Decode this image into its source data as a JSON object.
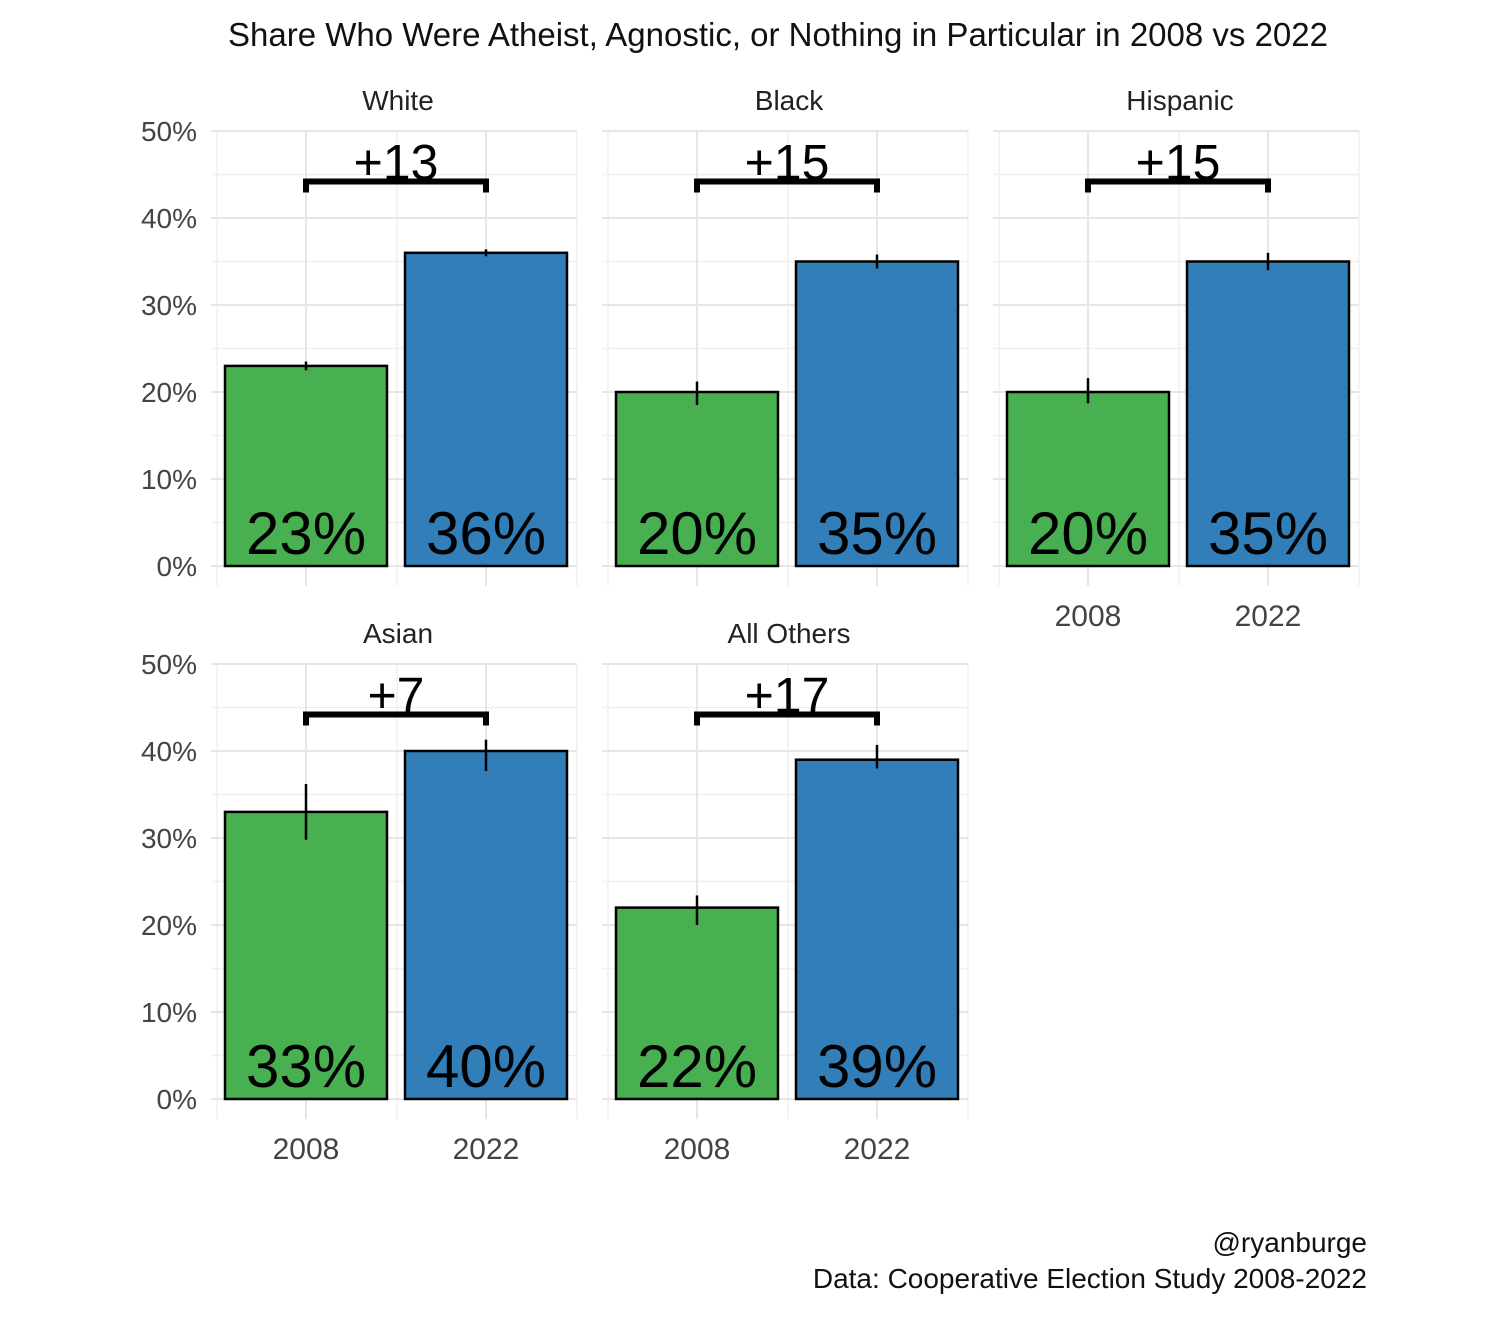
{
  "chart_data": {
    "type": "bar",
    "title": "Share Who Were Atheist, Agnostic, or Nothing in Particular in 2008 vs 2022",
    "categories": [
      "2008",
      "2022"
    ],
    "ylim": [
      0,
      50
    ],
    "yticks": [
      "0%",
      "10%",
      "20%",
      "30%",
      "40%",
      "50%"
    ],
    "colors": {
      "2008": "#48b050",
      "2022": "#317eb8"
    },
    "panels": [
      {
        "name": "White",
        "values": [
          23,
          36
        ],
        "labels": [
          "23%",
          "36%"
        ],
        "errors": [
          [
            22.5,
            23.5
          ],
          [
            35.6,
            36.4
          ]
        ],
        "diff": "+13"
      },
      {
        "name": "Black",
        "values": [
          20,
          35
        ],
        "labels": [
          "20%",
          "35%"
        ],
        "errors": [
          [
            18.5,
            21.2
          ],
          [
            34.2,
            35.8
          ]
        ],
        "diff": "+15"
      },
      {
        "name": "Hispanic",
        "values": [
          20,
          35
        ],
        "labels": [
          "20%",
          "35%"
        ],
        "errors": [
          [
            18.7,
            21.6
          ],
          [
            34.0,
            36.0
          ]
        ],
        "diff": "+15"
      },
      {
        "name": "Asian",
        "values": [
          33,
          40
        ],
        "labels": [
          "33%",
          "40%"
        ],
        "errors": [
          [
            29.8,
            36.2
          ],
          [
            37.7,
            41.3
          ]
        ],
        "diff": "+7"
      },
      {
        "name": "All Others",
        "values": [
          22,
          39
        ],
        "labels": [
          "22%",
          "39%"
        ],
        "errors": [
          [
            20.0,
            23.4
          ],
          [
            38.0,
            40.7
          ]
        ],
        "diff": "+17"
      }
    ],
    "legend": "none",
    "grid": true
  },
  "caption": {
    "author": "@ryanburge",
    "source": "Data: Cooperative Election Study 2008-2022"
  }
}
